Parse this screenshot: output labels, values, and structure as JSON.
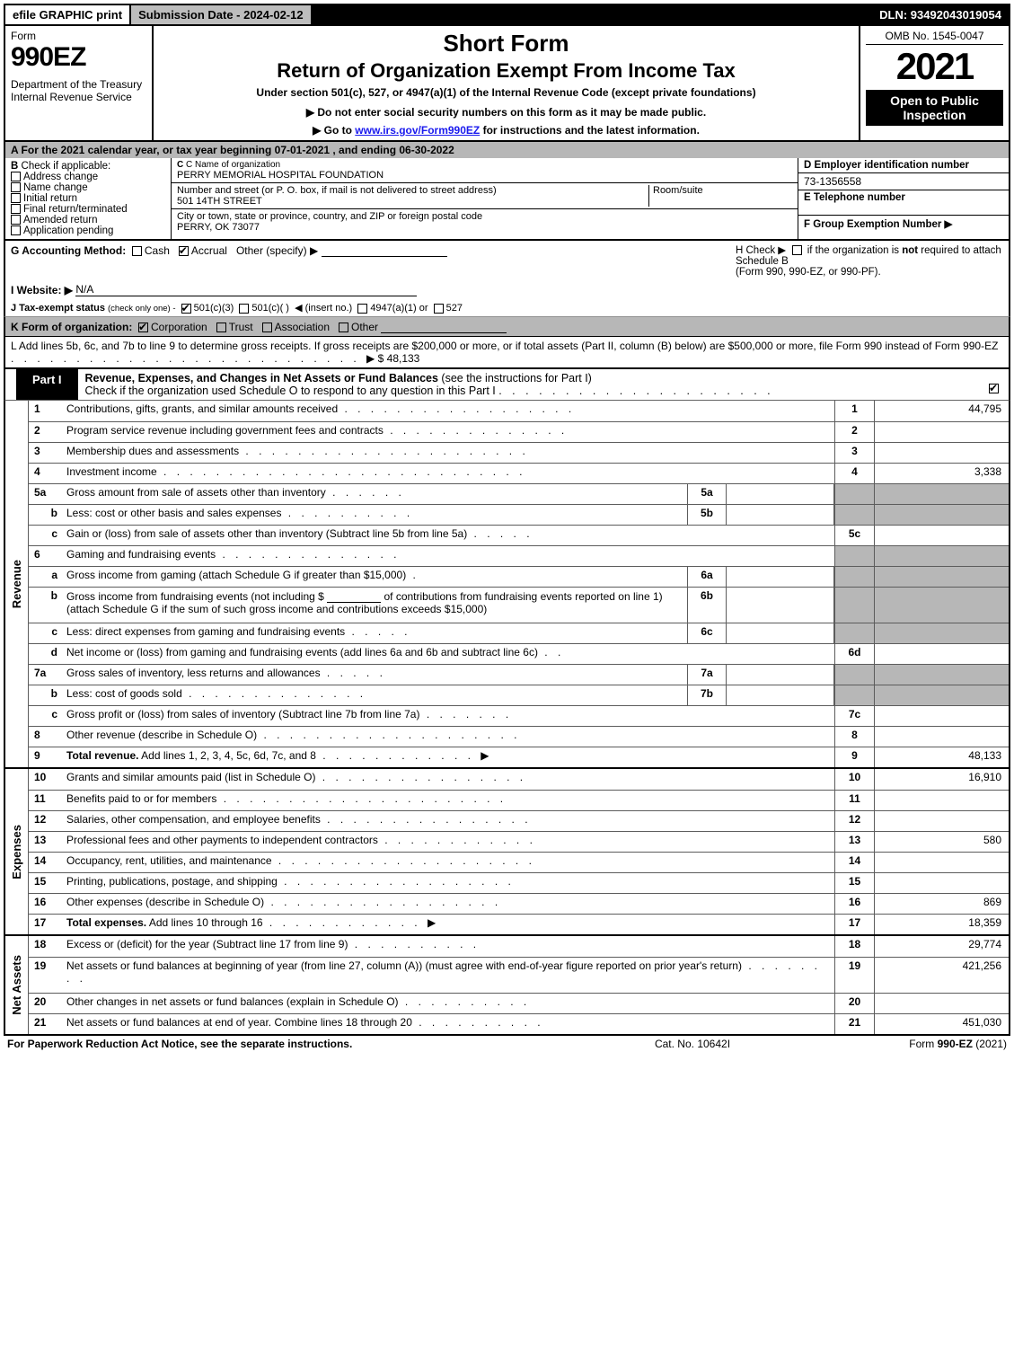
{
  "topbar": {
    "efile": "efile GRAPHIC print",
    "subdate": "Submission Date - 2024-02-12",
    "dln": "DLN: 93492043019054"
  },
  "header": {
    "form_word": "Form",
    "form_num": "990EZ",
    "dept": "Department of the Treasury\nInternal Revenue Service",
    "short": "Short Form",
    "return": "Return of Organization Exempt From Income Tax",
    "under": "Under section 501(c), 527, or 4947(a)(1) of the Internal Revenue Code (except private foundations)",
    "donot": "▶ Do not enter social security numbers on this form as it may be made public.",
    "goto_pre": "▶ Go to ",
    "goto_link": "www.irs.gov/Form990EZ",
    "goto_post": " for instructions and the latest information.",
    "omb": "OMB No. 1545-0047",
    "year": "2021",
    "open": "Open to Public Inspection"
  },
  "rowA": "A  For the 2021 calendar year, or tax year beginning 07-01-2021 , and ending 06-30-2022",
  "B": {
    "label": "B  Check if applicable:",
    "opts": [
      "Address change",
      "Name change",
      "Initial return",
      "Final return/terminated",
      "Amended return",
      "Application pending"
    ]
  },
  "C": {
    "label": "C Name of organization",
    "value": "PERRY MEMORIAL HOSPITAL FOUNDATION",
    "addr_label": "Number and street (or P. O. box, if mail is not delivered to street address)",
    "addr_value": "501 14TH STREET",
    "room_label": "Room/suite",
    "city_label": "City or town, state or province, country, and ZIP or foreign postal code",
    "city_value": "PERRY, OK  73077"
  },
  "D": {
    "label": "D Employer identification number",
    "value": "73-1356558"
  },
  "E": {
    "label": "E Telephone number"
  },
  "F": {
    "label": "F Group Exemption Number   ▶"
  },
  "G": {
    "label": "G Accounting Method:",
    "cash": "Cash",
    "accrual": "Accrual",
    "other": "Other (specify) ▶"
  },
  "H": {
    "h_pre": "H  Check ▶",
    "h_post": "if the organization is not required to attach Schedule B",
    "h_form": "(Form 990, 990-EZ, or 990-PF)."
  },
  "I": {
    "label": "I Website: ▶",
    "value": "N/A"
  },
  "J": {
    "label": "J Tax-exempt status",
    "sm": "(check only one) -",
    "c3": "501(c)(3)",
    "c": "501(c)(  )",
    "insert": "◀ (insert no.)",
    "a": "4947(a)(1) or",
    "five": "527"
  },
  "K": {
    "label": "K Form of organization:",
    "corp": "Corporation",
    "trust": "Trust",
    "assoc": "Association",
    "other": "Other"
  },
  "L": {
    "text": "L Add lines 5b, 6c, and 7b to line 9 to determine gross receipts. If gross receipts are $200,000 or more, or if total assets (Part II, column (B) below) are $500,000 or more, file Form 990 instead of Form 990-EZ",
    "arrow": "▶ $",
    "value": "48,133"
  },
  "part1": {
    "tab": "Part I",
    "title": "Revenue, Expenses, and Changes in Net Assets or Fund Balances",
    "paren": "(see the instructions for Part I)",
    "check_line": "Check if the organization used Schedule O to respond to any question in this Part I"
  },
  "sections": {
    "revenue": "Revenue",
    "expenses": "Expenses",
    "netassets": "Net Assets"
  },
  "lines": {
    "l1": {
      "n": "1",
      "d": "Contributions, gifts, grants, and similar amounts received",
      "rn": "1",
      "rv": "44,795"
    },
    "l2": {
      "n": "2",
      "d": "Program service revenue including government fees and contracts",
      "rn": "2",
      "rv": ""
    },
    "l3": {
      "n": "3",
      "d": "Membership dues and assessments",
      "rn": "3",
      "rv": ""
    },
    "l4": {
      "n": "4",
      "d": "Investment income",
      "rn": "4",
      "rv": "3,338"
    },
    "l5a": {
      "n": "5a",
      "d": "Gross amount from sale of assets other than inventory",
      "mn": "5a"
    },
    "l5b": {
      "n": "b",
      "d": "Less: cost or other basis and sales expenses",
      "mn": "5b"
    },
    "l5c": {
      "n": "c",
      "d": "Gain or (loss) from sale of assets other than inventory (Subtract line 5b from line 5a)",
      "rn": "5c",
      "rv": ""
    },
    "l6": {
      "n": "6",
      "d": "Gaming and fundraising events"
    },
    "l6a": {
      "n": "a",
      "d": "Gross income from gaming (attach Schedule G if greater than $15,000)",
      "mn": "6a"
    },
    "l6b": {
      "n": "b",
      "d": "Gross income from fundraising events (not including $",
      "d2": "of contributions from fundraising events reported on line 1) (attach Schedule G if the sum of such gross income and contributions exceeds $15,000)",
      "mn": "6b"
    },
    "l6c": {
      "n": "c",
      "d": "Less: direct expenses from gaming and fundraising events",
      "mn": "6c"
    },
    "l6d": {
      "n": "d",
      "d": "Net income or (loss) from gaming and fundraising events (add lines 6a and 6b and subtract line 6c)",
      "rn": "6d",
      "rv": ""
    },
    "l7a": {
      "n": "7a",
      "d": "Gross sales of inventory, less returns and allowances",
      "mn": "7a"
    },
    "l7b": {
      "n": "b",
      "d": "Less: cost of goods sold",
      "mn": "7b"
    },
    "l7c": {
      "n": "c",
      "d": "Gross profit or (loss) from sales of inventory (Subtract line 7b from line 7a)",
      "rn": "7c",
      "rv": ""
    },
    "l8": {
      "n": "8",
      "d": "Other revenue (describe in Schedule O)",
      "rn": "8",
      "rv": ""
    },
    "l9": {
      "n": "9",
      "d": "Total revenue. Add lines 1, 2, 3, 4, 5c, 6d, 7c, and 8",
      "rn": "9",
      "rv": "48,133",
      "bold": true,
      "arrow": true
    },
    "l10": {
      "n": "10",
      "d": "Grants and similar amounts paid (list in Schedule O)",
      "rn": "10",
      "rv": "16,910"
    },
    "l11": {
      "n": "11",
      "d": "Benefits paid to or for members",
      "rn": "11",
      "rv": ""
    },
    "l12": {
      "n": "12",
      "d": "Salaries, other compensation, and employee benefits",
      "rn": "12",
      "rv": ""
    },
    "l13": {
      "n": "13",
      "d": "Professional fees and other payments to independent contractors",
      "rn": "13",
      "rv": "580"
    },
    "l14": {
      "n": "14",
      "d": "Occupancy, rent, utilities, and maintenance",
      "rn": "14",
      "rv": ""
    },
    "l15": {
      "n": "15",
      "d": "Printing, publications, postage, and shipping",
      "rn": "15",
      "rv": ""
    },
    "l16": {
      "n": "16",
      "d": "Other expenses (describe in Schedule O)",
      "rn": "16",
      "rv": "869"
    },
    "l17": {
      "n": "17",
      "d": "Total expenses. Add lines 10 through 16",
      "rn": "17",
      "rv": "18,359",
      "bold": true,
      "arrow": true
    },
    "l18": {
      "n": "18",
      "d": "Excess or (deficit) for the year (Subtract line 17 from line 9)",
      "rn": "18",
      "rv": "29,774"
    },
    "l19": {
      "n": "19",
      "d": "Net assets or fund balances at beginning of year (from line 27, column (A)) (must agree with end-of-year figure reported on prior year's return)",
      "rn": "19",
      "rv": "421,256"
    },
    "l20": {
      "n": "20",
      "d": "Other changes in net assets or fund balances (explain in Schedule O)",
      "rn": "20",
      "rv": ""
    },
    "l21": {
      "n": "21",
      "d": "Net assets or fund balances at end of year. Combine lines 18 through 20",
      "rn": "21",
      "rv": "451,030"
    }
  },
  "footer": {
    "left": "For Paperwork Reduction Act Notice, see the separate instructions.",
    "center": "Cat. No. 10642I",
    "right_pre": "Form ",
    "right_bold": "990-EZ",
    "right_post": " (2021)"
  }
}
